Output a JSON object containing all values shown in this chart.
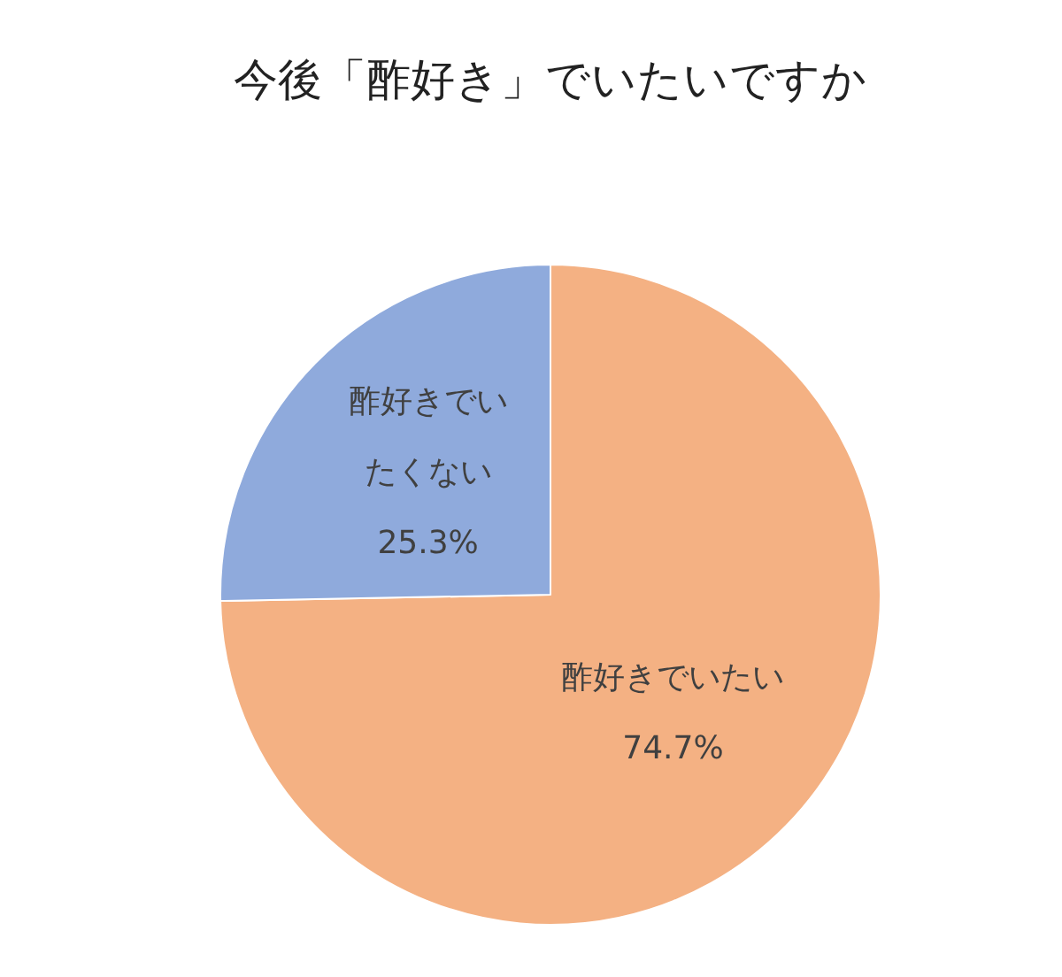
{
  "chart_data": {
    "type": "pie",
    "title": "今後「酢好き」でいたいですか",
    "categories": [
      "酢好きでいたい",
      "酢好きでいたくない"
    ],
    "values": [
      74.7,
      25.3
    ],
    "colors": [
      "#f4b183",
      "#8faadc"
    ],
    "value_labels": [
      "74.7%",
      "25.3%"
    ],
    "legend": false
  }
}
